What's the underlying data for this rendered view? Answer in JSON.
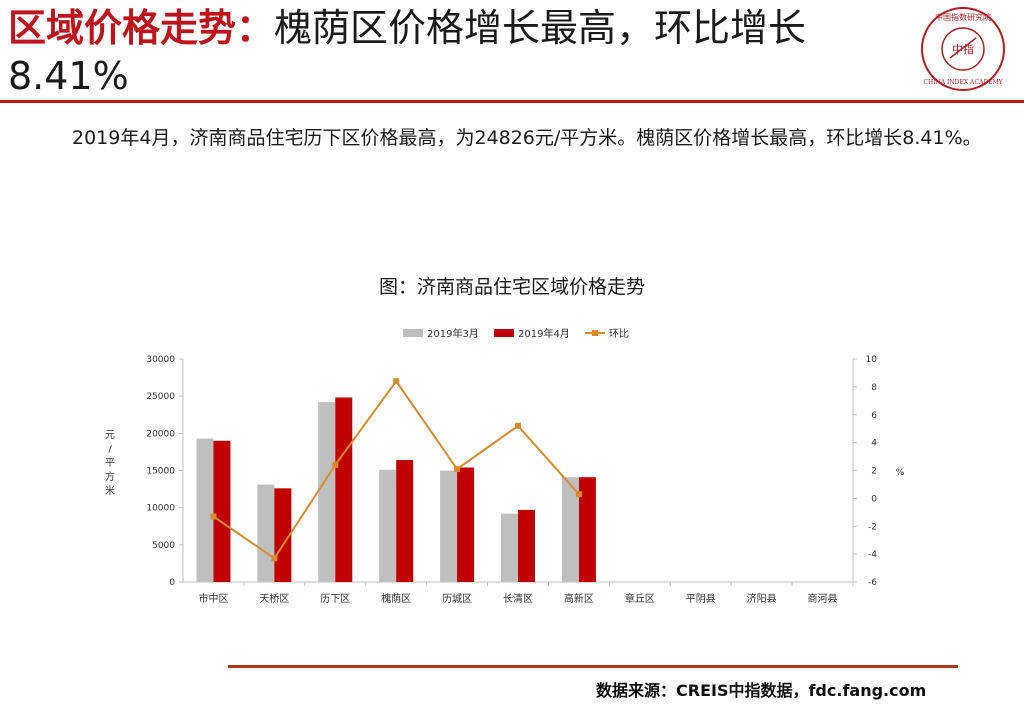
{
  "header": {
    "title_prefix": "区域价格走势：",
    "title_rest": "槐荫区价格增长最高，环比增长8.41%",
    "logo_text_top": "中国指数研究院",
    "logo_text_bottom": "CHINA INDEX ACADEMY",
    "logo_center": "中指"
  },
  "body": {
    "paragraph": "2019年4月，济南商品住宅历下区价格最高，为24826元/平方米。槐荫区价格增长最高，环比增长8.41%。"
  },
  "chart_data": {
    "type": "bar",
    "title": "图：济南商品住宅区域价格走势",
    "categories": [
      "市中区",
      "天桥区",
      "历下区",
      "槐荫区",
      "历城区",
      "长清区",
      "高新区",
      "章丘区",
      "平阴县",
      "济阳县",
      "商河县"
    ],
    "series": [
      {
        "name": "2019年3月",
        "type": "bar",
        "axis": "left",
        "color": "#bfbfbf",
        "values": [
          19300,
          13100,
          24200,
          15100,
          15000,
          9200,
          14100,
          null,
          null,
          null,
          null
        ]
      },
      {
        "name": "2019年4月",
        "type": "bar",
        "axis": "left",
        "color": "#c00000",
        "values": [
          19000,
          12600,
          24826,
          16400,
          15400,
          9700,
          14100,
          null,
          null,
          null,
          null
        ]
      },
      {
        "name": "环比",
        "type": "line",
        "axis": "right",
        "color": "#d98b2b",
        "values": [
          -1.3,
          -4.3,
          2.4,
          8.41,
          2.1,
          5.2,
          0.3,
          null,
          null,
          null,
          null
        ]
      }
    ],
    "ylabel_left": "元/平方米",
    "ylabel_right": "%",
    "ylim_left": [
      0,
      30000
    ],
    "yticks_left": [
      0,
      5000,
      10000,
      15000,
      20000,
      25000,
      30000
    ],
    "ylim_right": [
      -6,
      10
    ],
    "yticks_right": [
      -6,
      -4,
      -2,
      0,
      2,
      4,
      6,
      8,
      10
    ],
    "legend_position": "top-center",
    "grid": false
  },
  "footer": {
    "source": "数据来源：CREIS中指数据，fdc.fang.com"
  }
}
